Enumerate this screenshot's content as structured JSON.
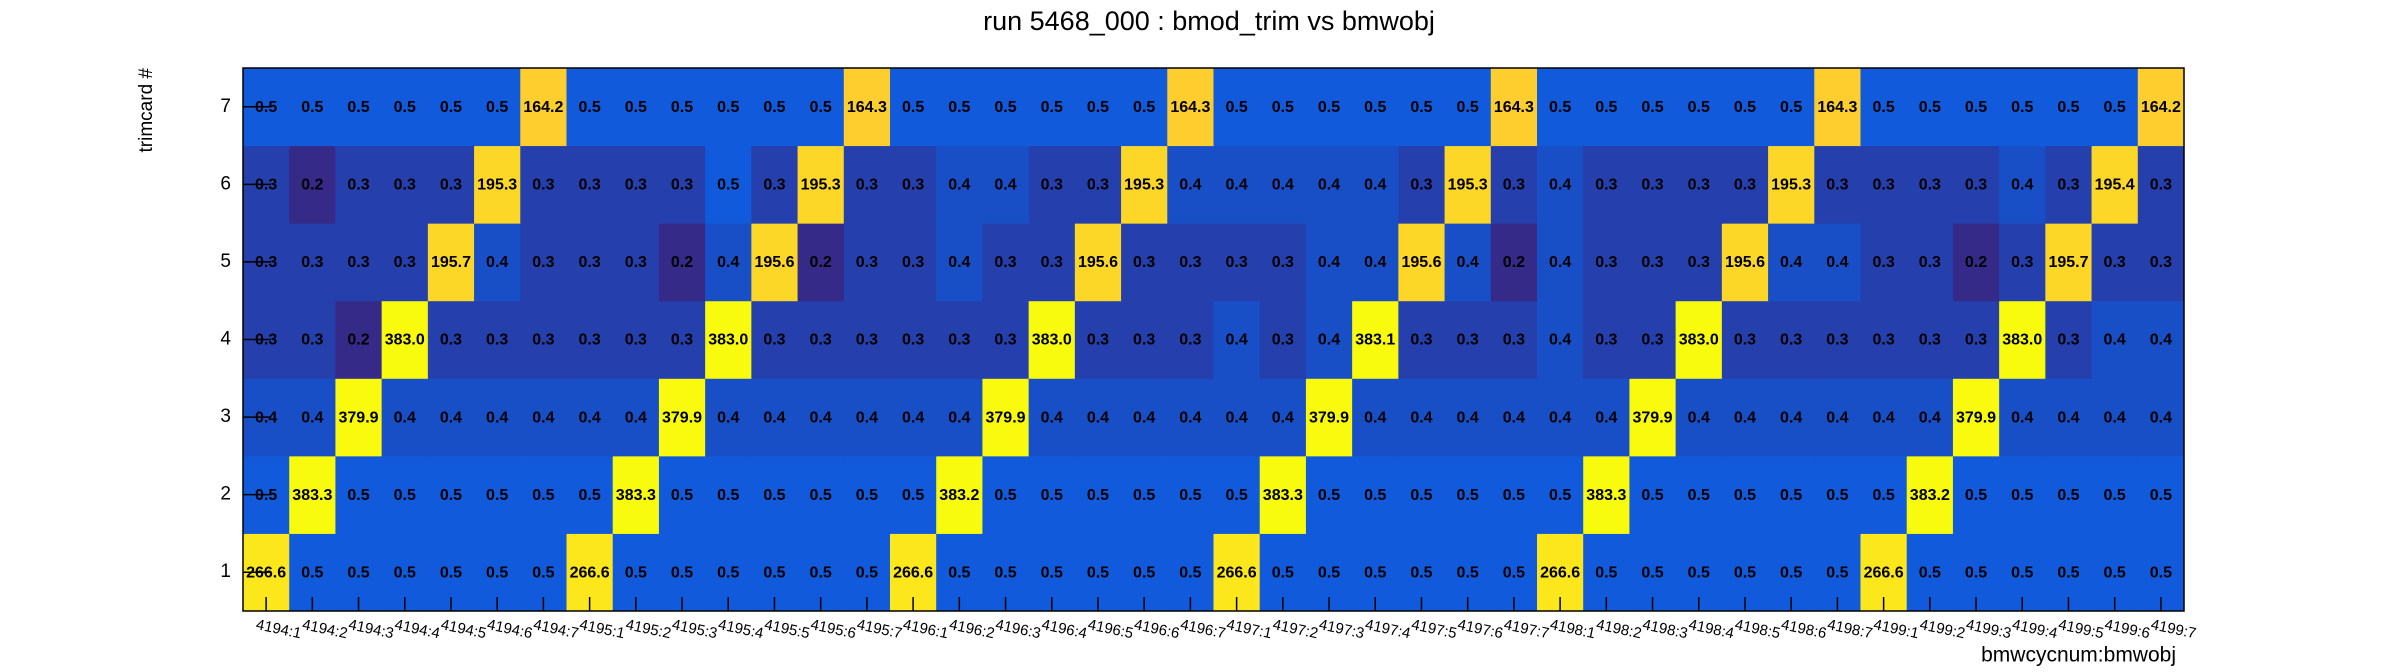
{
  "chart_data": {
    "type": "heatmap",
    "title": "run 5468_000 : bmod_trim vs bmwobj",
    "x_label": "bmwcycnum:bmwobj",
    "y_label": "trimcard #",
    "categories": [
      "4194:1",
      "4194:2",
      "4194:3",
      "4194:4",
      "4194:5",
      "4194:6",
      "4194:7",
      "4195:1",
      "4195:2",
      "4195:3",
      "4195:4",
      "4195:5",
      "4195:6",
      "4195:7",
      "4196:1",
      "4196:2",
      "4196:3",
      "4196:4",
      "4196:5",
      "4196:6",
      "4196:7",
      "4197:1",
      "4197:2",
      "4197:3",
      "4197:4",
      "4197:5",
      "4197:6",
      "4197:7",
      "4198:1",
      "4198:2",
      "4198:3",
      "4198:4",
      "4198:5",
      "4198:6",
      "4198:7",
      "4199:1",
      "4199:2",
      "4199:3",
      "4199:4",
      "4199:5",
      "4199:6",
      "4199:7"
    ],
    "y_categories": [
      1,
      2,
      3,
      4,
      5,
      6,
      7
    ],
    "palette": "bird",
    "zlog": true,
    "values": [
      [
        266.6,
        0.5,
        0.5,
        0.5,
        0.5,
        0.5,
        0.5,
        266.6,
        0.5,
        0.5,
        0.5,
        0.5,
        0.5,
        0.5,
        266.6,
        0.5,
        0.5,
        0.5,
        0.5,
        0.5,
        0.5,
        266.6,
        0.5,
        0.5,
        0.5,
        0.5,
        0.5,
        0.5,
        266.6,
        0.5,
        0.5,
        0.5,
        0.5,
        0.5,
        0.5,
        266.6,
        0.5,
        0.5,
        0.5,
        0.5,
        0.5,
        0.5
      ],
      [
        0.5,
        383.3,
        0.5,
        0.5,
        0.5,
        0.5,
        0.5,
        0.5,
        383.3,
        0.5,
        0.5,
        0.5,
        0.5,
        0.5,
        0.5,
        383.2,
        0.5,
        0.5,
        0.5,
        0.5,
        0.5,
        0.5,
        383.3,
        0.5,
        0.5,
        0.5,
        0.5,
        0.5,
        0.5,
        383.3,
        0.5,
        0.5,
        0.5,
        0.5,
        0.5,
        0.5,
        383.2,
        0.5,
        0.5,
        0.5,
        0.5,
        0.5
      ],
      [
        0.4,
        0.4,
        379.9,
        0.4,
        0.4,
        0.4,
        0.4,
        0.4,
        0.4,
        379.9,
        0.4,
        0.4,
        0.4,
        0.4,
        0.4,
        0.4,
        379.9,
        0.4,
        0.4,
        0.4,
        0.4,
        0.4,
        0.4,
        379.9,
        0.4,
        0.4,
        0.4,
        0.4,
        0.4,
        0.4,
        379.9,
        0.4,
        0.4,
        0.4,
        0.4,
        0.4,
        0.4,
        379.9,
        0.4,
        0.4,
        0.4,
        0.4
      ],
      [
        0.3,
        0.3,
        0.2,
        383.0,
        0.3,
        0.3,
        0.3,
        0.3,
        0.3,
        0.3,
        383.0,
        0.3,
        0.3,
        0.3,
        0.3,
        0.3,
        0.3,
        383.0,
        0.3,
        0.3,
        0.3,
        0.4,
        0.3,
        0.4,
        383.1,
        0.3,
        0.3,
        0.3,
        0.4,
        0.3,
        0.3,
        383.0,
        0.3,
        0.3,
        0.3,
        0.3,
        0.3,
        0.3,
        383.0,
        0.3,
        0.4,
        0.4
      ],
      [
        0.3,
        0.3,
        0.3,
        0.3,
        195.7,
        0.4,
        0.3,
        0.3,
        0.3,
        0.2,
        0.4,
        195.6,
        0.2,
        0.3,
        0.3,
        0.4,
        0.3,
        0.3,
        195.6,
        0.3,
        0.3,
        0.3,
        0.3,
        0.4,
        0.4,
        195.6,
        0.4,
        0.2,
        0.4,
        0.3,
        0.3,
        0.3,
        195.6,
        0.4,
        0.4,
        0.3,
        0.3,
        0.2,
        0.3,
        195.7,
        0.3,
        0.3
      ],
      [
        0.3,
        0.2,
        0.3,
        0.3,
        0.3,
        195.3,
        0.3,
        0.3,
        0.3,
        0.3,
        0.5,
        0.3,
        195.3,
        0.3,
        0.3,
        0.4,
        0.4,
        0.3,
        0.3,
        195.3,
        0.4,
        0.4,
        0.4,
        0.4,
        0.4,
        0.3,
        195.3,
        0.3,
        0.4,
        0.3,
        0.3,
        0.3,
        0.3,
        195.3,
        0.3,
        0.3,
        0.3,
        0.3,
        0.4,
        0.3,
        195.4,
        0.3
      ],
      [
        0.5,
        0.5,
        0.5,
        0.5,
        0.5,
        0.5,
        164.2,
        0.5,
        0.5,
        0.5,
        0.5,
        0.5,
        0.5,
        164.3,
        0.5,
        0.5,
        0.5,
        0.5,
        0.5,
        0.5,
        164.3,
        0.5,
        0.5,
        0.5,
        0.5,
        0.5,
        0.5,
        164.3,
        0.5,
        0.5,
        0.5,
        0.5,
        0.5,
        0.5,
        164.3,
        0.5,
        0.5,
        0.5,
        0.5,
        0.5,
        0.5,
        164.2
      ]
    ],
    "value_labels": [
      [
        "266.6",
        "0.5",
        "0.5",
        "0.5",
        "0.5",
        "0.5",
        "0.5",
        "266.6",
        "0.5",
        "0.5",
        "0.5",
        "0.5",
        "0.5",
        "0.5",
        "266.6",
        "0.5",
        "0.5",
        "0.5",
        "0.5",
        "0.5",
        "0.5",
        "266.6",
        "0.5",
        "0.5",
        "0.5",
        "0.5",
        "0.5",
        "0.5",
        "266.6",
        "0.5",
        "0.5",
        "0.5",
        "0.5",
        "0.5",
        "0.5",
        "266.6",
        "0.5",
        "0.5",
        "0.5",
        "0.5",
        "0.5",
        "0.5"
      ],
      [
        "0.5",
        "383.3",
        "0.5",
        "0.5",
        "0.5",
        "0.5",
        "0.5",
        "0.5",
        "383.3",
        "0.5",
        "0.5",
        "0.5",
        "0.5",
        "0.5",
        "0.5",
        "383.2",
        "0.5",
        "0.5",
        "0.5",
        "0.5",
        "0.5",
        "0.5",
        "383.3",
        "0.5",
        "0.5",
        "0.5",
        "0.5",
        "0.5",
        "0.5",
        "383.3",
        "0.5",
        "0.5",
        "0.5",
        "0.5",
        "0.5",
        "0.5",
        "383.2",
        "0.5",
        "0.5",
        "0.5",
        "0.5",
        "0.5"
      ],
      [
        "0.4",
        "0.4",
        "379.9",
        "0.4",
        "0.4",
        "0.4",
        "0.4",
        "0.4",
        "0.4",
        "379.9",
        "0.4",
        "0.4",
        "0.4",
        "0.4",
        "0.4",
        "0.4",
        "379.9",
        "0.4",
        "0.4",
        "0.4",
        "0.4",
        "0.4",
        "0.4",
        "379.9",
        "0.4",
        "0.4",
        "0.4",
        "0.4",
        "0.4",
        "0.4",
        "379.9",
        "0.4",
        "0.4",
        "0.4",
        "0.4",
        "0.4",
        "0.4",
        "379.9",
        "0.4",
        "0.4",
        "0.4",
        "0.4"
      ],
      [
        "0.3",
        "0.3",
        "0.2",
        "383.0",
        "0.3",
        "0.3",
        "0.3",
        "0.3",
        "0.3",
        "0.3",
        "383.0",
        "0.3",
        "0.3",
        "0.3",
        "0.3",
        "0.3",
        "0.3",
        "383.0",
        "0.3",
        "0.3",
        "0.3",
        "0.4",
        "0.3",
        "0.4",
        "383.1",
        "0.3",
        "0.3",
        "0.3",
        "0.4",
        "0.3",
        "0.3",
        "383.0",
        "0.3",
        "0.3",
        "0.3",
        "0.3",
        "0.3",
        "0.3",
        "383.0",
        "0.3",
        "0.4",
        "0.4"
      ],
      [
        "0.3",
        "0.3",
        "0.3",
        "0.3",
        "195.7",
        "0.4",
        "0.3",
        "0.3",
        "0.3",
        "0.2",
        "0.4",
        "195.6",
        "0.2",
        "0.3",
        "0.3",
        "0.4",
        "0.3",
        "0.3",
        "195.6",
        "0.3",
        "0.3",
        "0.3",
        "0.3",
        "0.4",
        "0.4",
        "195.6",
        "0.4",
        "0.2",
        "0.4",
        "0.3",
        "0.3",
        "0.3",
        "195.6",
        "0.4",
        "0.4",
        "0.3",
        "0.3",
        "0.2",
        "0.3",
        "195.7",
        "0.3",
        "0.3"
      ],
      [
        "0.3",
        "0.2",
        "0.3",
        "0.3",
        "0.3",
        "195.3",
        "0.3",
        "0.3",
        "0.3",
        "0.3",
        "0.5",
        "0.3",
        "195.3",
        "0.3",
        "0.3",
        "0.4",
        "0.4",
        "0.3",
        "0.3",
        "195.3",
        "0.4",
        "0.4",
        "0.4",
        "0.4",
        "0.4",
        "0.3",
        "195.3",
        "0.3",
        "0.4",
        "0.3",
        "0.3",
        "0.3",
        "0.3",
        "195.3",
        "0.3",
        "0.3",
        "0.3",
        "0.3",
        "0.4",
        "0.3",
        "195.4",
        "0.3"
      ],
      [
        "0.5",
        "0.5",
        "0.5",
        "0.5",
        "0.5",
        "0.5",
        "164.2",
        "0.5",
        "0.5",
        "0.5",
        "0.5",
        "0.5",
        "0.5",
        "164.3",
        "0.5",
        "0.5",
        "0.5",
        "0.5",
        "0.5",
        "0.5",
        "164.3",
        "0.5",
        "0.5",
        "0.5",
        "0.5",
        "0.5",
        "0.5",
        "164.3",
        "0.5",
        "0.5",
        "0.5",
        "0.5",
        "0.5",
        "0.5",
        "164.3",
        "0.5",
        "0.5",
        "0.5",
        "0.5",
        "0.5",
        "0.5",
        "164.2"
      ]
    ]
  }
}
